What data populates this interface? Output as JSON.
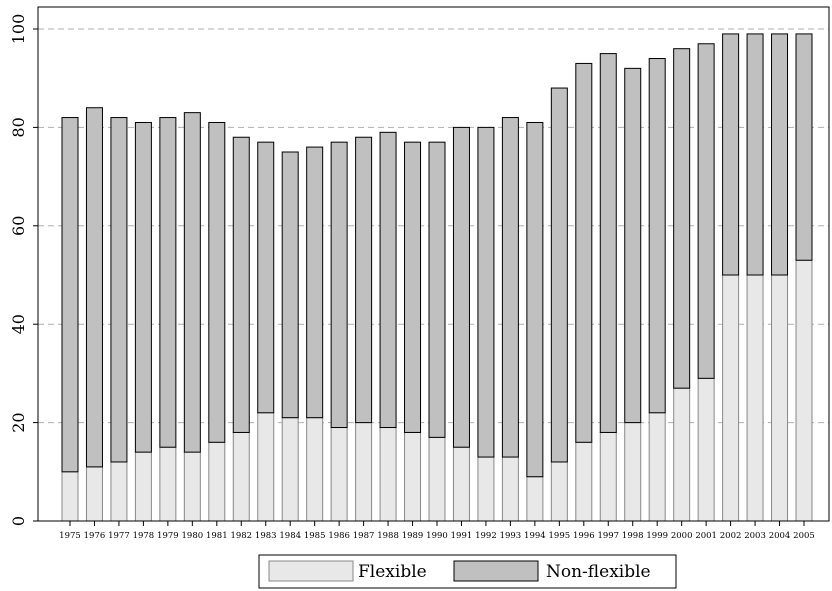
{
  "chart_data": {
    "type": "bar",
    "stacked": true,
    "categories": [
      "1975",
      "1976",
      "1977",
      "1978",
      "1979",
      "1980",
      "1981",
      "1982",
      "1983",
      "1984",
      "1985",
      "1986",
      "1987",
      "1988",
      "1989",
      "1990",
      "1991",
      "1992",
      "1993",
      "1994",
      "1995",
      "1996",
      "1997",
      "1998",
      "1999",
      "2000",
      "2001",
      "2002",
      "2003",
      "2004",
      "2005"
    ],
    "series": [
      {
        "name": "Flexible",
        "color": "#e8e8e8",
        "values": [
          10,
          11,
          12,
          14,
          15,
          14,
          16,
          18,
          22,
          21,
          21,
          19,
          20,
          19,
          18,
          17,
          15,
          13,
          13,
          9,
          12,
          16,
          18,
          20,
          22,
          27,
          29,
          50,
          50,
          50,
          53
        ]
      },
      {
        "name": "Non-flexible",
        "color": "#c0c0c0",
        "values": [
          72,
          73,
          70,
          67,
          67,
          69,
          65,
          60,
          55,
          54,
          55,
          58,
          58,
          60,
          59,
          60,
          65,
          67,
          69,
          72,
          76,
          77,
          77,
          72,
          72,
          69,
          68,
          49,
          49,
          49,
          46
        ]
      }
    ],
    "ylim": [
      0,
      100
    ],
    "yticks": [
      "0",
      "20",
      "40",
      "60",
      "80",
      "100"
    ],
    "grid": "horizontal-dashed",
    "legend": "bottom",
    "title": "",
    "xlabel": "",
    "ylabel": ""
  }
}
